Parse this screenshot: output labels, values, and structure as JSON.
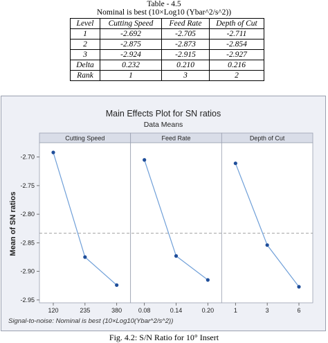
{
  "table": {
    "caption": "Table - 4.5",
    "subtitle": "Nominal is best (10×Log10 (Ybar^2/s^2))",
    "headers": [
      "Level",
      "Cutting Speed",
      "Feed Rate",
      "Depth of Cut"
    ],
    "rows": [
      [
        "1",
        "-2.692",
        "-2.705",
        "-2.711"
      ],
      [
        "2",
        "-2.875",
        "-2.873",
        "-2.854"
      ],
      [
        "3",
        "-2.924",
        "-2.915",
        "-2.927"
      ],
      [
        "Delta",
        "0.232",
        "0.210",
        "0.216"
      ],
      [
        "Rank",
        "1",
        "3",
        "2"
      ]
    ]
  },
  "chart_data": {
    "type": "line",
    "title": "Main Effects Plot for SN ratios",
    "subtitle": "Data Means",
    "ylabel": "Mean of SN ratios",
    "ylim": [
      -2.955,
      -2.675
    ],
    "yticks": [
      "-2.70",
      "-2.75",
      "-2.80",
      "-2.85",
      "-2.90",
      "-2.95"
    ],
    "ytick_values": [
      -2.7,
      -2.75,
      -2.8,
      -2.85,
      -2.9,
      -2.95
    ],
    "reference_line": -2.8333,
    "grid": false,
    "panels": [
      {
        "name": "Cutting Speed",
        "categories": [
          "120",
          "235",
          "380"
        ],
        "values": [
          -2.692,
          -2.875,
          -2.924
        ]
      },
      {
        "name": "Feed Rate",
        "categories": [
          "0.08",
          "0.14",
          "0.20"
        ],
        "values": [
          -2.705,
          -2.873,
          -2.915
        ]
      },
      {
        "name": "Depth of Cut",
        "categories": [
          "1",
          "3",
          "6"
        ],
        "values": [
          -2.711,
          -2.854,
          -2.927
        ]
      }
    ],
    "colors": {
      "line": "#6f9fd8",
      "marker": "#1f4e9a",
      "reference": "#888888",
      "panel_header": "#d9dde8"
    }
  },
  "footnote": "Signal-to-noise: Nominal is best (10×Log10(Ybar^2/s^2))",
  "figure_caption": "Fig. 4.2: S/N Ratio for 10° Insert"
}
